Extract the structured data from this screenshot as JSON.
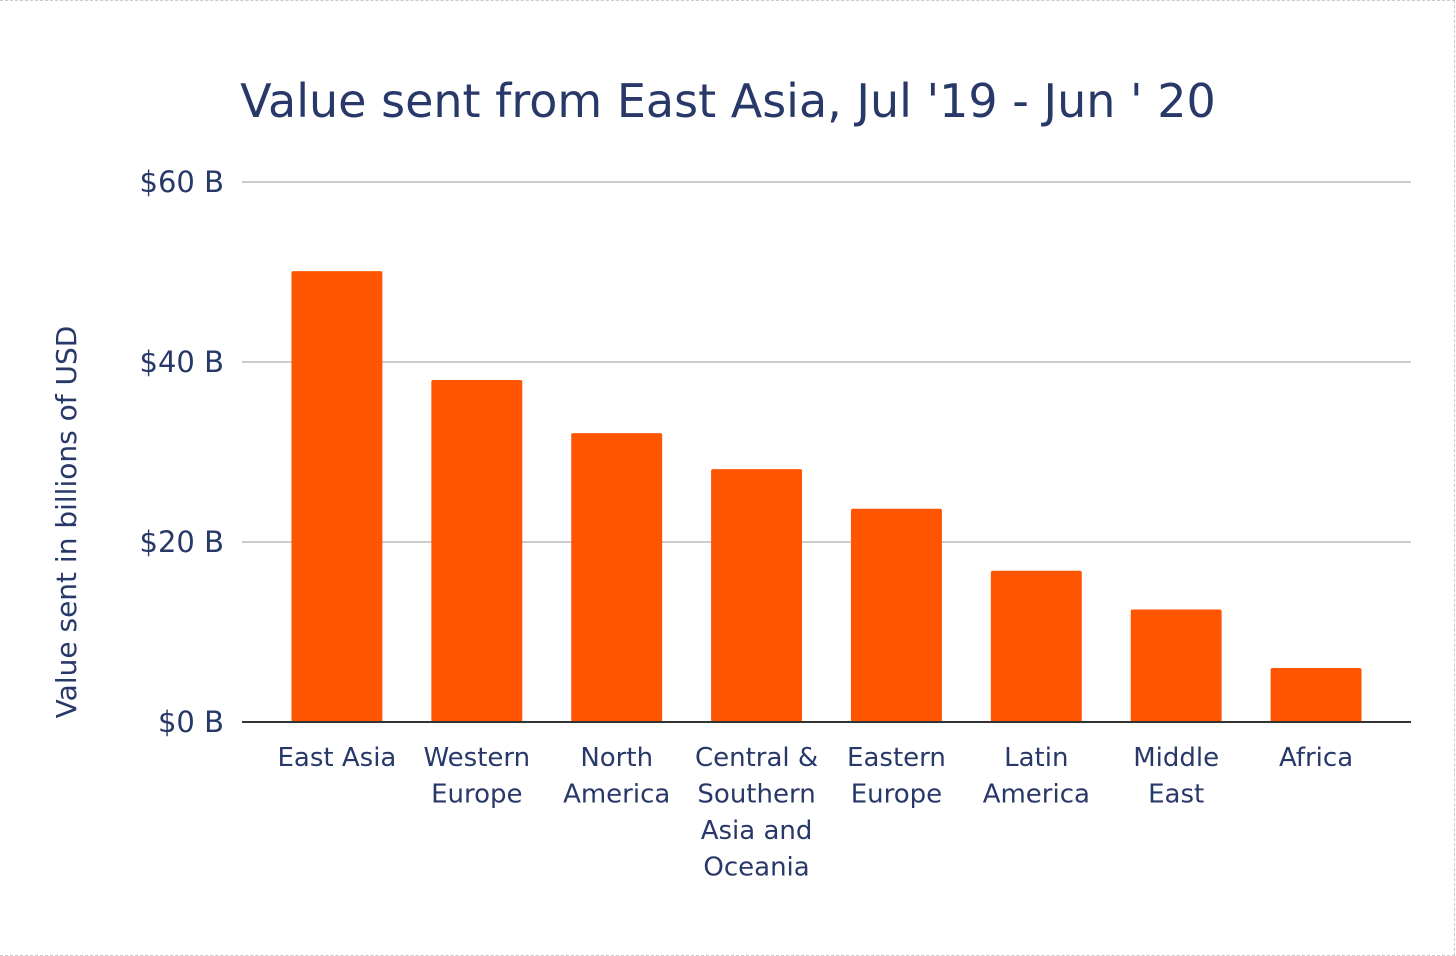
{
  "chart_data": {
    "type": "bar",
    "title": "Value sent from East Asia, Jul '19 - Jun ' 20",
    "ylabel": "Value sent in billions of USD",
    "xlabel": "",
    "ylim": [
      0,
      60
    ],
    "yticks": [
      0,
      20,
      40,
      60
    ],
    "ytick_labels": [
      "$0 B",
      "$20 B",
      "$40 B",
      "$60 B"
    ],
    "grid": true,
    "categories": [
      [
        "East Asia"
      ],
      [
        "Western",
        "Europe"
      ],
      [
        "North",
        "America"
      ],
      [
        "Central &",
        "Southern",
        "Asia and",
        "Oceania"
      ],
      [
        "Eastern",
        "Europe"
      ],
      [
        "Latin",
        "America"
      ],
      [
        "Middle",
        "East"
      ],
      [
        "Africa"
      ]
    ],
    "values": [
      50.1,
      38.0,
      32.1,
      28.1,
      23.7,
      16.8,
      12.5,
      6.0
    ],
    "bar_color": "#ff5500",
    "text_color": "#283868",
    "grid_color": "#cccccc"
  }
}
